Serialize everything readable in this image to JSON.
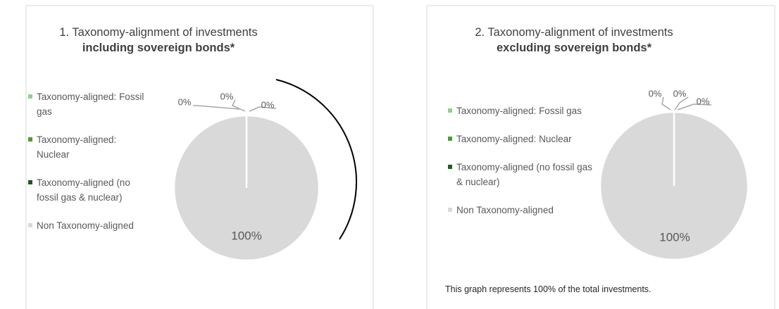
{
  "chart_data": [
    {
      "type": "pie",
      "title": "1. Taxonomy-alignment of investments",
      "subtitle": "including sovereign bonds*",
      "categories": [
        "Taxonomy-aligned: Fossil gas",
        "Taxonomy-aligned: Nuclear",
        "Taxonomy-aligned (no fossil gas & nuclear)",
        "Non Taxonomy-aligned"
      ],
      "values": [
        0,
        0,
        0,
        100
      ],
      "value_labels": [
        "0%",
        "0%",
        "0%",
        "100%"
      ],
      "colors": [
        "#8fd18a",
        "#4e9a35",
        "#1f5a1f",
        "#d9d9d9"
      ],
      "legend": "left"
    },
    {
      "type": "pie",
      "title": "2. Taxonomy-alignment of investments",
      "subtitle": "excluding sovereign bonds*",
      "categories": [
        "Taxonomy-aligned: Fossil gas",
        "Taxonomy-aligned: Nuclear",
        "Taxonomy-aligned (no fossil gas & nuclear)",
        "Non Taxonomy-aligned"
      ],
      "values": [
        0,
        0,
        0,
        100
      ],
      "value_labels": [
        "0%",
        "0%",
        "0%",
        "100%"
      ],
      "colors": [
        "#8fd18a",
        "#4e9a35",
        "#1f5a1f",
        "#d9d9d9"
      ],
      "legend": "left",
      "footnote": "This graph represents 100% of the total investments."
    }
  ]
}
